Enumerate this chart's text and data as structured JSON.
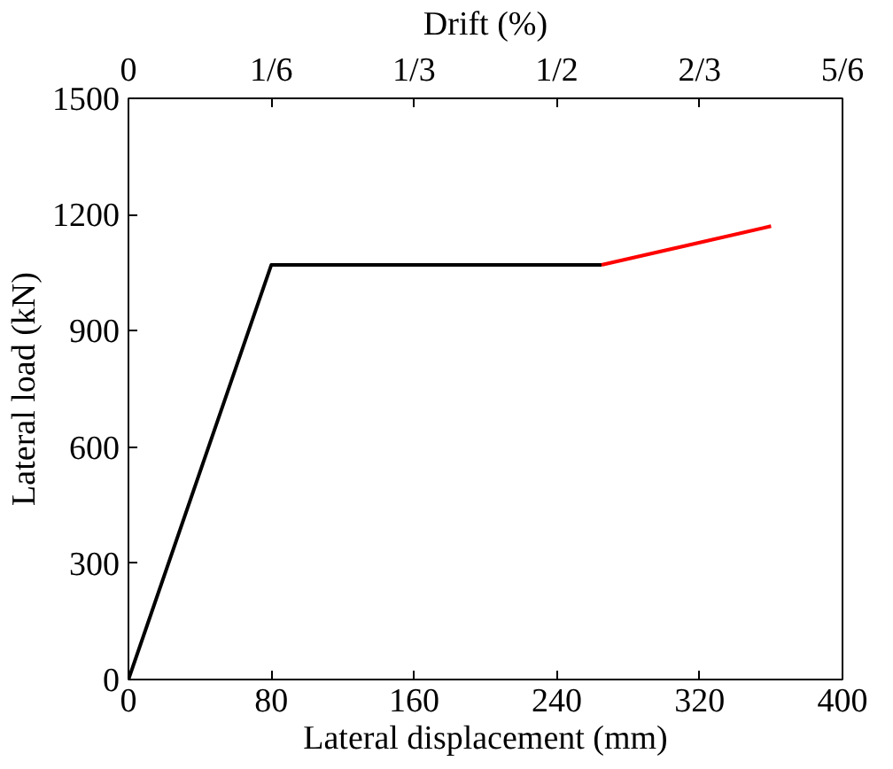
{
  "chart_data": {
    "type": "line",
    "xlabel": "Lateral displacement (mm)",
    "ylabel": "Lateral load (kN)",
    "x2label": "Drift (%)",
    "xlim": [
      0,
      400
    ],
    "xticks": [
      0,
      80,
      160,
      240,
      320,
      400
    ],
    "ylim": [
      0,
      1500
    ],
    "yticks": [
      0,
      300,
      600,
      900,
      1200,
      1500
    ],
    "x2lim": [
      0,
      0.8333
    ],
    "x2ticks": [
      0,
      {
        "value": 0.1667,
        "label": "1/6"
      },
      {
        "value": 0.3333,
        "label": "1/3"
      },
      {
        "value": 0.5,
        "label": "1/2"
      },
      {
        "value": 0.6667,
        "label": "2/3"
      },
      {
        "value": 0.8333,
        "label": "5/6"
      }
    ],
    "grid": false,
    "marker": "none",
    "line_style": "solid",
    "series": [
      {
        "color": "#000000",
        "x": [
          0,
          80,
          265
        ],
        "values": [
          0,
          1070,
          1070
        ]
      },
      {
        "color": "#ff0000",
        "x": [
          265,
          360
        ],
        "values": [
          1070,
          1170
        ]
      }
    ]
  }
}
